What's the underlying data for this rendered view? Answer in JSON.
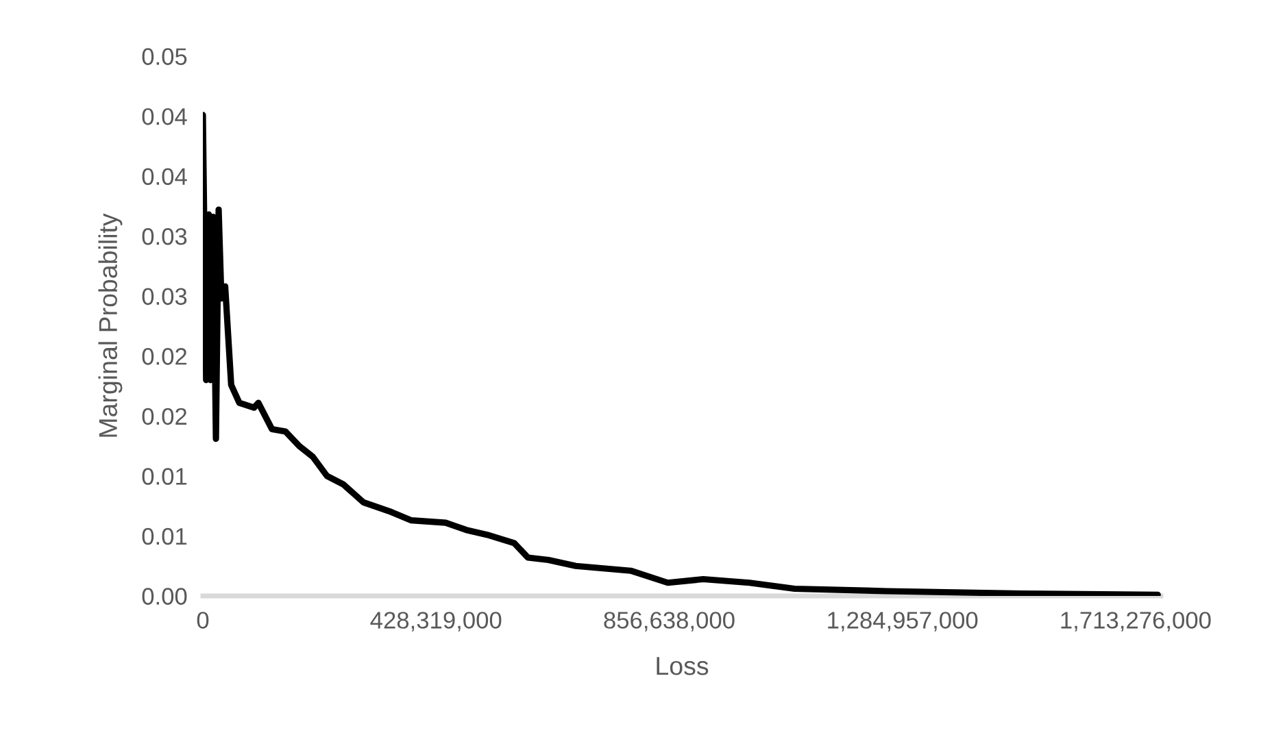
{
  "chart_data": {
    "type": "line",
    "xlabel": "Loss",
    "ylabel": "Marginal Probability",
    "x": [
      0,
      6000000,
      11000000,
      14000000,
      19000000,
      24000000,
      29000000,
      34000000,
      41000000,
      52000000,
      67000000,
      94000000,
      102000000,
      127000000,
      152000000,
      177000000,
      202000000,
      228000000,
      258000000,
      295000000,
      346000000,
      383000000,
      446000000,
      484000000,
      522000000,
      572000000,
      597000000,
      635000000,
      685000000,
      786000000,
      854000000,
      919000000,
      1004000000,
      1087000000,
      1256000000,
      1507000000,
      1754000000
    ],
    "series": [
      {
        "color": "#000000",
        "values": [
          0.0401,
          0.018,
          0.0318,
          0.018,
          0.0316,
          0.0131,
          0.0322,
          0.0248,
          0.0258,
          0.0176,
          0.0161,
          0.0157,
          0.0161,
          0.0139,
          0.0137,
          0.0125,
          0.0116,
          0.01,
          0.0093,
          0.0078,
          0.007,
          0.0063,
          0.0061,
          0.0055,
          0.0051,
          0.0044,
          0.0032,
          0.003,
          0.0025,
          0.0021,
          0.0011,
          0.0014,
          0.0011,
          0.0006,
          0.0004,
          0.0002,
          0.0001
        ]
      }
    ],
    "xlim": [
      0,
      1760000000
    ],
    "xticks": [
      {
        "value": 0,
        "label": "0"
      },
      {
        "value": 428319000,
        "label": "428,319,000"
      },
      {
        "value": 856638000,
        "label": "856,638,000"
      },
      {
        "value": 1284957000,
        "label": "1,284,957,000"
      },
      {
        "value": 1713276000,
        "label": "1,713,276,000"
      }
    ],
    "ylim": [
      0,
      0.045
    ],
    "yticks": [
      {
        "value": 0,
        "label": "0.00"
      },
      {
        "value": 0.005,
        "label": "0.01"
      },
      {
        "value": 0.01,
        "label": "0.01"
      },
      {
        "value": 0.015,
        "label": "0.02"
      },
      {
        "value": 0.02,
        "label": "0.02"
      },
      {
        "value": 0.025,
        "label": "0.03"
      },
      {
        "value": 0.03,
        "label": "0.03"
      },
      {
        "value": 0.035,
        "label": "0.04"
      },
      {
        "value": 0.04,
        "label": "0.04"
      },
      {
        "value": 0.045,
        "label": "0.05"
      }
    ],
    "grid": false,
    "marker": "none",
    "line_style": "solid"
  }
}
